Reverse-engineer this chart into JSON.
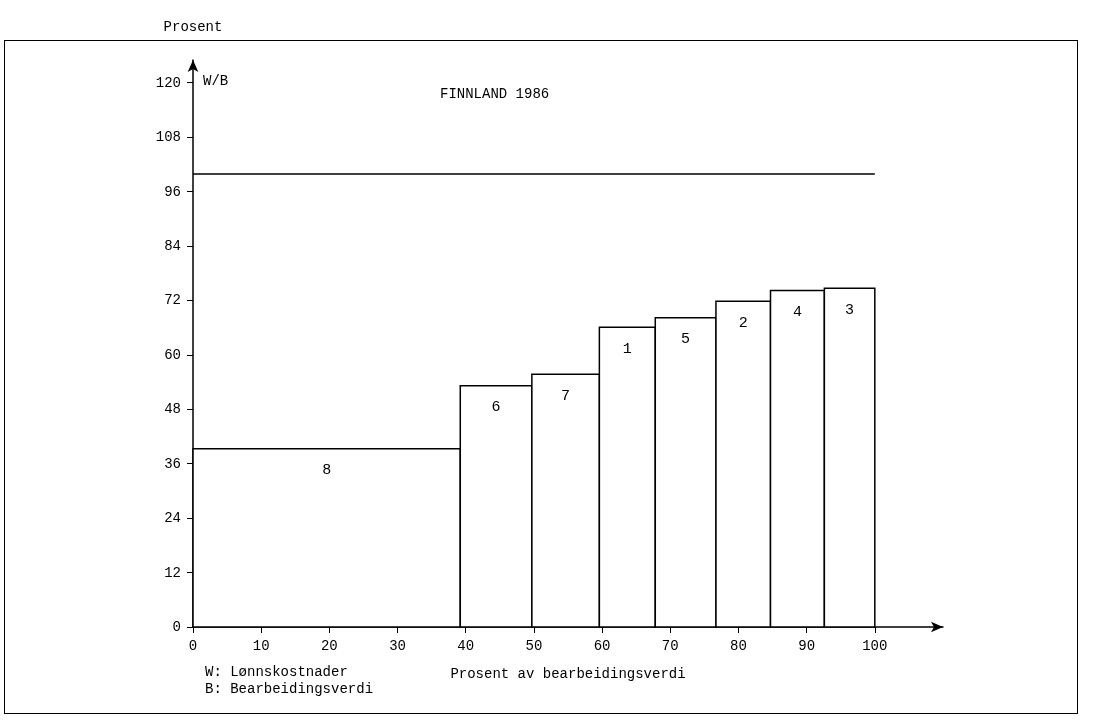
{
  "chart_data": {
    "type": "histogram",
    "title": "FINNLAND 1986",
    "ylabel": "Prosent",
    "xlabel": "Prosent av bearbeidingsverdi",
    "bins": [
      0,
      39.2,
      49.7,
      59.6,
      67.8,
      76.7,
      84.7,
      92.6,
      100
    ],
    "values": [
      39.3,
      53.2,
      55.7,
      66.1,
      68.2,
      71.8,
      74.2,
      74.7
    ],
    "color": "#ffffff",
    "xlim": [
      0,
      110
    ],
    "xticks": [
      0,
      10,
      20,
      30,
      40,
      50,
      60,
      70,
      80,
      90,
      100
    ],
    "ylim": [
      0,
      125
    ],
    "yticks": [
      0,
      12,
      24,
      36,
      48,
      60,
      72,
      84,
      96,
      108,
      120
    ],
    "ref_lines": [
      {
        "axis": "y",
        "value": 100,
        "color": "#000000"
      }
    ],
    "annotations": [
      "W/B",
      "W: Lønnskostnader",
      "B: Bearbeidingsverdi",
      {
        "text": "8",
        "x": 19.6,
        "y": 39.3
      },
      {
        "text": "6",
        "x": 44.45,
        "y": 53.2
      },
      {
        "text": "7",
        "x": 54.65,
        "y": 55.7
      },
      {
        "text": "1",
        "x": 63.7,
        "y": 66.1
      },
      {
        "text": "5",
        "x": 72.25,
        "y": 68.2
      },
      {
        "text": "2",
        "x": 80.7,
        "y": 71.8
      },
      {
        "text": "4",
        "x": 88.65,
        "y": 74.2
      },
      {
        "text": "3",
        "x": 96.3,
        "y": 74.7
      }
    ],
    "grid": false
  }
}
